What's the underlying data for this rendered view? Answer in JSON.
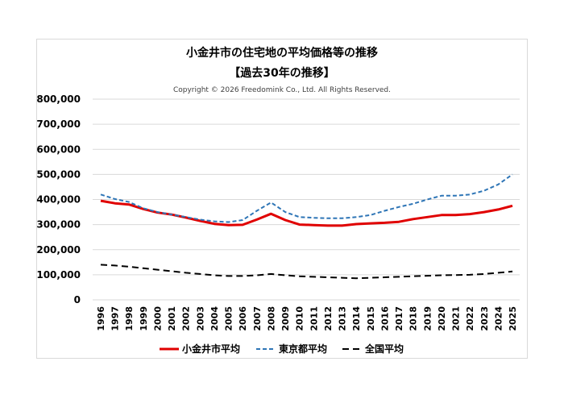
{
  "chart_data": {
    "type": "line",
    "title": "小金井市の住宅地の平均価格等の推移",
    "subtitle": "【過去30年の推移】",
    "copyright": "Copyright © 2026 Freedomink Co., Ltd. All Rights Reserved.",
    "xlabel": "",
    "ylabel": "",
    "ylim": [
      0,
      800000
    ],
    "yticks": [
      "0",
      "100,000",
      "200,000",
      "300,000",
      "400,000",
      "500,000",
      "600,000",
      "700,000",
      "800,000"
    ],
    "grid": true,
    "legend": "bottom",
    "categories": [
      "1996",
      "1997",
      "1998",
      "1999",
      "2000",
      "2001",
      "2002",
      "2003",
      "2004",
      "2005",
      "2006",
      "2007",
      "2008",
      "2009",
      "2010",
      "2011",
      "2012",
      "2013",
      "2014",
      "2015",
      "2016",
      "2017",
      "2018",
      "2019",
      "2020",
      "2021",
      "2022",
      "2023",
      "2024",
      "2025"
    ],
    "series": [
      {
        "name": "小金井市平均",
        "color": "#e00000",
        "style": "solid",
        "values": [
          395000,
          385000,
          380000,
          362000,
          348000,
          340000,
          328000,
          315000,
          303000,
          298000,
          299000,
          320000,
          343000,
          318000,
          300000,
          298000,
          296000,
          296000,
          302000,
          305000,
          307000,
          311000,
          322000,
          330000,
          338000,
          338000,
          342000,
          350000,
          360000,
          375000
        ]
      },
      {
        "name": "東京都平均",
        "color": "#2e75b6",
        "style": "dashed",
        "values": [
          420000,
          402000,
          390000,
          365000,
          350000,
          340000,
          330000,
          320000,
          313000,
          310000,
          318000,
          355000,
          388000,
          350000,
          330000,
          327000,
          325000,
          325000,
          330000,
          338000,
          355000,
          370000,
          383000,
          400000,
          415000,
          415000,
          420000,
          435000,
          460000,
          500000
        ]
      },
      {
        "name": "全国平均",
        "color": "#000000",
        "style": "dashed",
        "values": [
          140000,
          137000,
          132000,
          126000,
          120000,
          114000,
          108000,
          103000,
          98000,
          95000,
          95000,
          98000,
          103000,
          98000,
          94000,
          92000,
          90000,
          88000,
          86000,
          88000,
          90000,
          92000,
          94000,
          96000,
          98000,
          99000,
          100000,
          103000,
          108000,
          113000
        ]
      }
    ]
  }
}
